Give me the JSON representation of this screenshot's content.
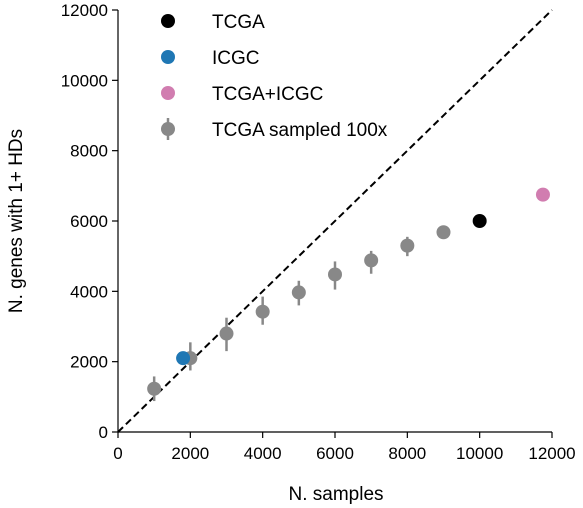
{
  "chart_data": {
    "type": "scatter",
    "xlabel": "N. samples",
    "ylabel": "N. genes with 1+ HDs",
    "xlim": [
      0,
      12000
    ],
    "ylim": [
      0,
      12000
    ],
    "xticks": [
      0,
      2000,
      4000,
      6000,
      8000,
      10000,
      12000
    ],
    "yticks": [
      0,
      2000,
      4000,
      6000,
      8000,
      10000,
      12000
    ],
    "grid": false,
    "legend_position": "top-left",
    "reference_line": {
      "style": "dashed",
      "color": "#000000",
      "from": [
        0,
        0
      ],
      "to": [
        12000,
        12000
      ]
    },
    "series": [
      {
        "name": "TCGA",
        "color": "#000000",
        "marker": "circle",
        "points": [
          {
            "x": 10000,
            "y": 6000
          }
        ]
      },
      {
        "name": "ICGC",
        "color": "#1f77b4",
        "marker": "circle",
        "points": [
          {
            "x": 1800,
            "y": 2100
          }
        ]
      },
      {
        "name": "TCGA+ICGC",
        "color": "#d17db0",
        "marker": "circle",
        "points": [
          {
            "x": 11750,
            "y": 6750
          }
        ]
      },
      {
        "name": "TCGA sampled 100x",
        "color": "#888888",
        "marker": "circle-errorbar",
        "points": [
          {
            "x": 1000,
            "y": 1230,
            "lo": 880,
            "hi": 1580
          },
          {
            "x": 2000,
            "y": 2100,
            "lo": 1750,
            "hi": 2550
          },
          {
            "x": 3000,
            "y": 2800,
            "lo": 2300,
            "hi": 3250
          },
          {
            "x": 4000,
            "y": 3420,
            "lo": 3050,
            "hi": 3850
          },
          {
            "x": 5000,
            "y": 3970,
            "lo": 3600,
            "hi": 4300
          },
          {
            "x": 6000,
            "y": 4480,
            "lo": 4050,
            "hi": 4850
          },
          {
            "x": 7000,
            "y": 4880,
            "lo": 4500,
            "hi": 5150
          },
          {
            "x": 8000,
            "y": 5300,
            "lo": 5000,
            "hi": 5550
          },
          {
            "x": 9000,
            "y": 5680,
            "lo": 5500,
            "hi": 5820
          }
        ]
      }
    ]
  }
}
